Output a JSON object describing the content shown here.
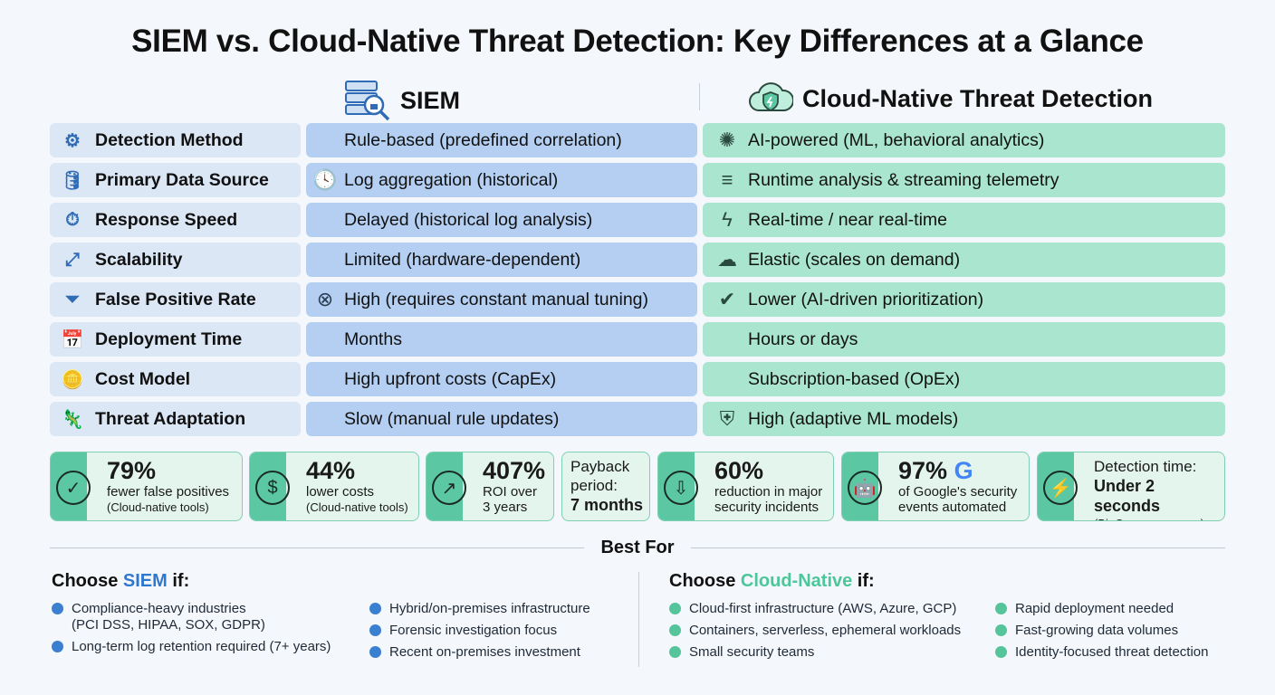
{
  "title": "SIEM vs. Cloud-Native Threat Detection: Key Differences at a Glance",
  "columns": {
    "siem": "SIEM",
    "cloud": "Cloud-Native Threat Detection"
  },
  "rows": [
    {
      "label": "Detection Method",
      "icon": "gear-icon",
      "siem": "Rule-based (predefined correlation)",
      "siem_icon": "",
      "cloud": "AI-powered (ML, behavioral analytics)",
      "cloud_icon": "brain-icon"
    },
    {
      "label": "Primary Data Source",
      "icon": "database-icon",
      "siem": "Log aggregation (historical)",
      "siem_icon": "clock-icon",
      "cloud": "Runtime analysis & streaming telemetry",
      "cloud_icon": "speed-icon"
    },
    {
      "label": "Response Speed",
      "icon": "stopwatch-icon",
      "siem": "Delayed (historical log analysis)",
      "siem_icon": "",
      "cloud": "Real-time / near real-time",
      "cloud_icon": "lightning-icon"
    },
    {
      "label": "Scalability",
      "icon": "scale-arrows-icon",
      "siem": "Limited (hardware-dependent)",
      "siem_icon": "",
      "cloud": "Elastic (scales on demand)",
      "cloud_icon": "cloud-icon"
    },
    {
      "label": "False Positive Rate",
      "icon": "funnel-icon",
      "siem": "High (requires constant manual tuning)",
      "siem_icon": "x-circle-icon",
      "cloud": "Lower (AI-driven prioritization)",
      "cloud_icon": "check-funnel-icon"
    },
    {
      "label": "Deployment Time",
      "icon": "calendar-icon",
      "siem": "Months",
      "siem_icon": "",
      "cloud": "Hours or days",
      "cloud_icon": ""
    },
    {
      "label": "Cost Model",
      "icon": "coins-icon",
      "siem": "High upfront costs (CapEx)",
      "siem_icon": "",
      "cloud": "Subscription-based (OpEx)",
      "cloud_icon": ""
    },
    {
      "label": "Threat Adaptation",
      "icon": "chameleon-icon",
      "siem": "Slow (manual rule updates)",
      "siem_icon": "",
      "cloud": "High (adaptive ML models)",
      "cloud_icon": "shield-gear-icon"
    }
  ],
  "stats": [
    {
      "icon": "check-circle-icon",
      "big": "79%",
      "line1": "fewer false positives",
      "line2": "(Cloud-native tools)"
    },
    {
      "icon": "dollar-circle-icon",
      "big": "44%",
      "line1": "lower costs",
      "line2": "(Cloud-native tools)"
    },
    {
      "icon": "trend-up-icon",
      "big": "407%",
      "line1": "ROI over",
      "line2": "3 years"
    },
    {
      "pre1": "Payback",
      "pre2": "period:",
      "bold": "7 months"
    },
    {
      "icon": "shield-down-icon",
      "big": "60%",
      "line1": "reduction in major",
      "line2": "security incidents"
    },
    {
      "icon": "robot-icon",
      "big": "97%",
      "line1": "of Google's security",
      "line2": "events automated",
      "brand": "G"
    },
    {
      "icon": "stopwatch-bolt-icon",
      "pre1": "Detection time:",
      "bold": "Under 2 seconds",
      "line2": "(BigCommerce case)"
    }
  ],
  "best_for": {
    "title": "Best For",
    "siem": {
      "prefix": "Choose ",
      "name": "SIEM",
      "suffix": " if:",
      "items": [
        "Compliance-heavy industries",
        "(PCI DSS, HIPAA, SOX, GDPR)",
        "Long-term log retention required (7+ years)",
        "Hybrid/on-premises infrastructure",
        "Forensic investigation focus",
        "Recent on-premises investment"
      ]
    },
    "cloud": {
      "prefix": "Choose ",
      "name": "Cloud-Native",
      "suffix": " if:",
      "items": [
        "Cloud-first infrastructure (AWS, Azure, GCP)",
        "Containers, serverless, ephemeral workloads",
        "Small security teams",
        "Rapid deployment needed",
        "Fast-growing data volumes",
        "Identity-focused threat detection"
      ]
    }
  },
  "colors": {
    "siem_accent": "#2f78d0",
    "cloud_accent": "#4cc79a",
    "siem_cell": "#b4cff1",
    "cloud_cell": "#a9e5cf",
    "label_cell": "#dbe7f5"
  }
}
